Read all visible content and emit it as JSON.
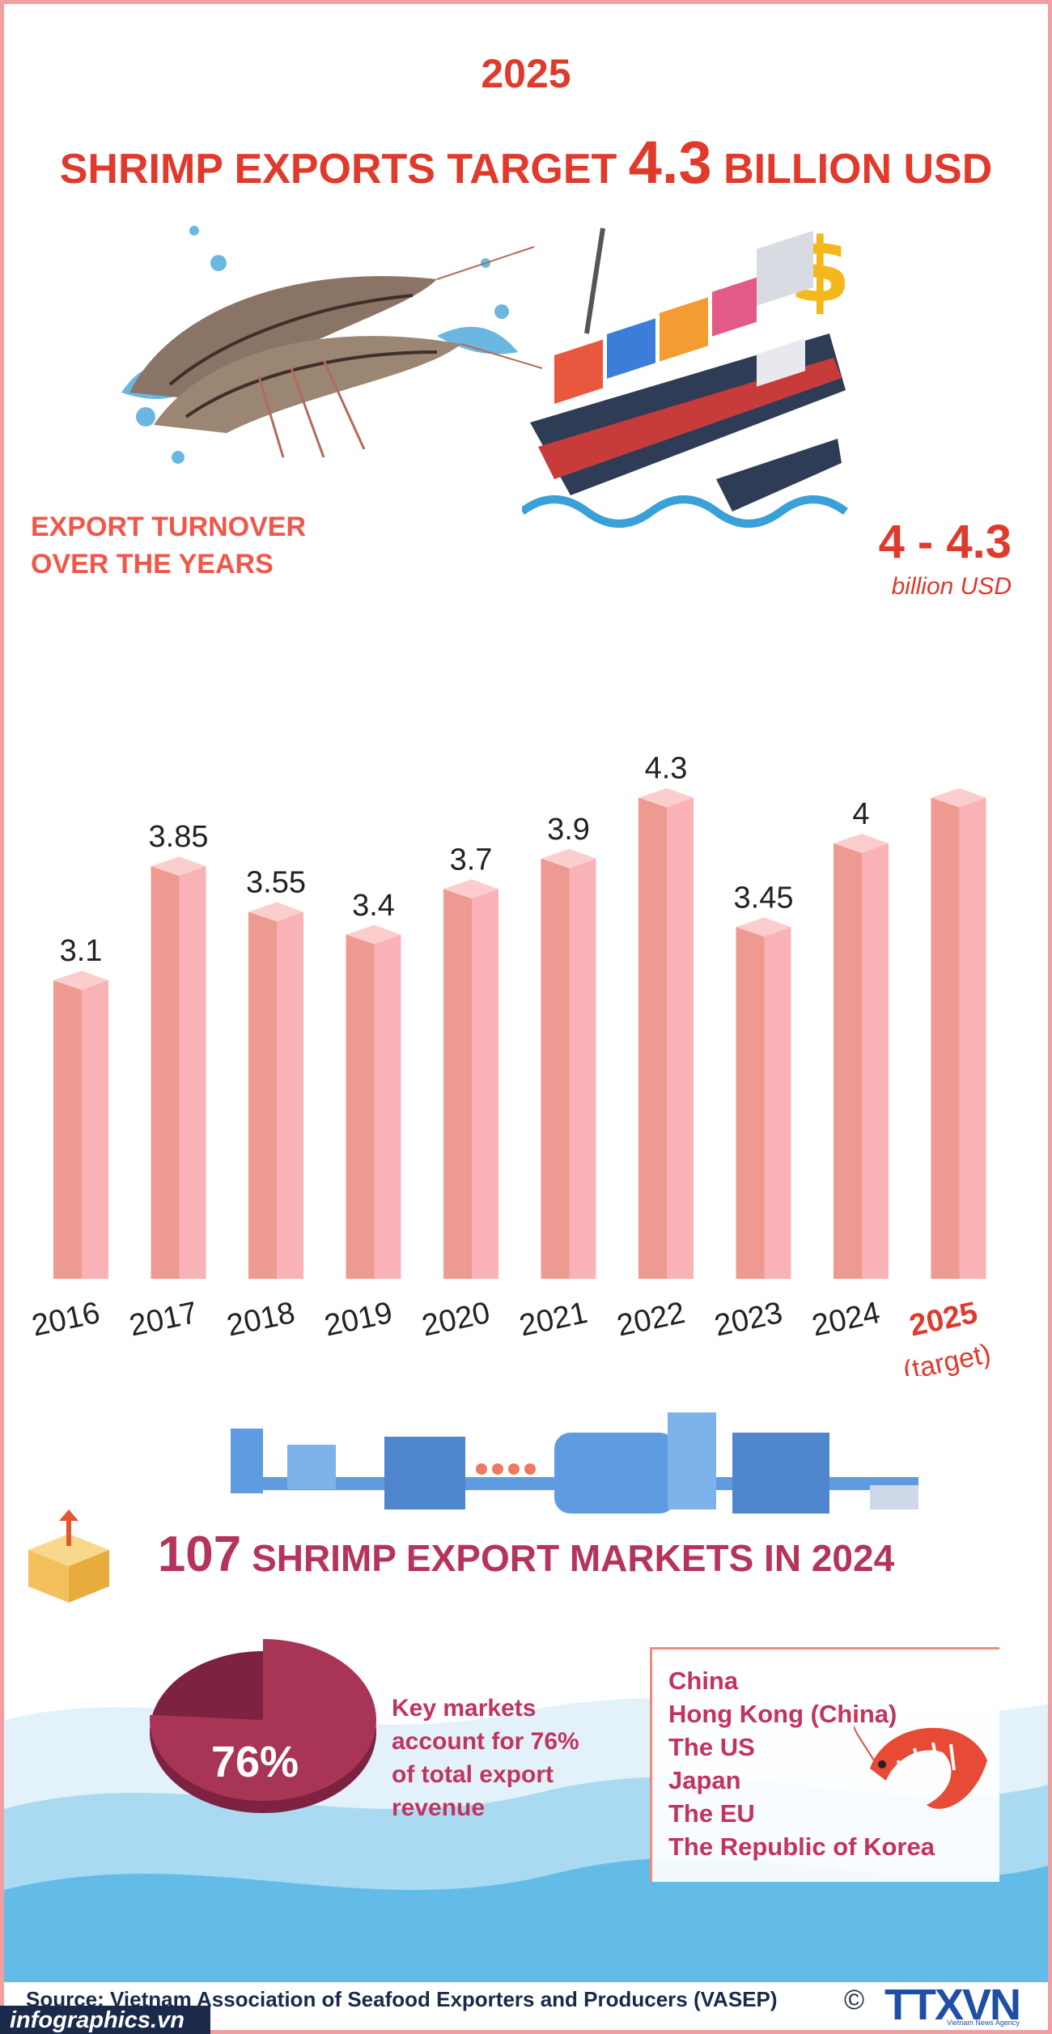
{
  "header": {
    "year": "2025",
    "title_prefix": "SHRIMP EXPORTS TARGET",
    "title_value": "4.3",
    "title_suffix": "BILLION USD"
  },
  "turnover_heading": [
    "EXPORT TURNOVER",
    "OVER THE YEARS"
  ],
  "target_callout": {
    "value": "4 - 4.3",
    "unit": "billion USD"
  },
  "chart_data": {
    "type": "bar",
    "title": "EXPORT TURNOVER OVER THE YEARS",
    "categories": [
      "2016",
      "2017",
      "2018",
      "2019",
      "2020",
      "2021",
      "2022",
      "2023",
      "2024",
      "2025"
    ],
    "values": [
      3.1,
      3.85,
      3.55,
      3.4,
      3.7,
      3.9,
      4.3,
      3.45,
      4,
      4.3
    ],
    "value_labels": [
      "3.1",
      "3.85",
      "3.55",
      "3.4",
      "3.7",
      "3.9",
      "4.3",
      "3.45",
      "4",
      ""
    ],
    "target_category": "2025",
    "target_note": "(target)",
    "unit": "billion USD",
    "xlabel": "",
    "ylabel": "",
    "grid": false,
    "colors": {
      "bar_front": "#f9b3b6",
      "bar_side": "#ee9a90",
      "bar_top": "#fccdcd",
      "label": "#222222",
      "target": "#e03a2c"
    }
  },
  "markets": {
    "number": "107",
    "label": "SHRIMP EXPORT MARKETS IN 2024"
  },
  "pie": {
    "percent_value": 76,
    "percent_label": "76%",
    "description": [
      "Key markets",
      "account for 76%",
      "of total export",
      "revenue"
    ],
    "color": "#a83556"
  },
  "key_markets": [
    "China",
    "Hong Kong (China)",
    "The US",
    "Japan",
    "The EU",
    "The Republic of Korea"
  ],
  "source": "Source: Vietnam Association of Seafood Exporters and Producers (VASEP)",
  "footer": {
    "site": "infographics.vn",
    "copyright": "©",
    "agency": "TTXVN",
    "agency_sub": "Vietnam News Agency"
  },
  "colors": {
    "accent": "#e03a2c",
    "markets": "#b5345a",
    "frame": "#f0a0a2",
    "wave_light": "#cfe9f6",
    "wave_mid": "#8ccbeb",
    "wave_dark": "#4fb0e3"
  }
}
